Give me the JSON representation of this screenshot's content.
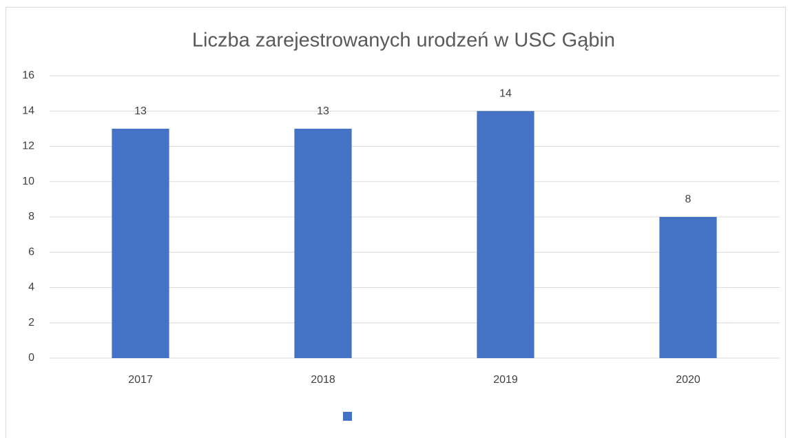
{
  "chart_data": {
    "type": "bar",
    "title": "Liczba zarejestrowanych urodzeń w USC Gąbin",
    "categories": [
      "2017",
      "2018",
      "2019",
      "2020"
    ],
    "values": [
      13,
      13,
      14,
      8
    ],
    "color": "#4472c4",
    "ylim": [
      0,
      16
    ],
    "yticks": [
      0,
      2,
      4,
      6,
      8,
      10,
      12,
      14,
      16
    ],
    "grid": true,
    "data_labels": true,
    "legend": "bottom"
  }
}
